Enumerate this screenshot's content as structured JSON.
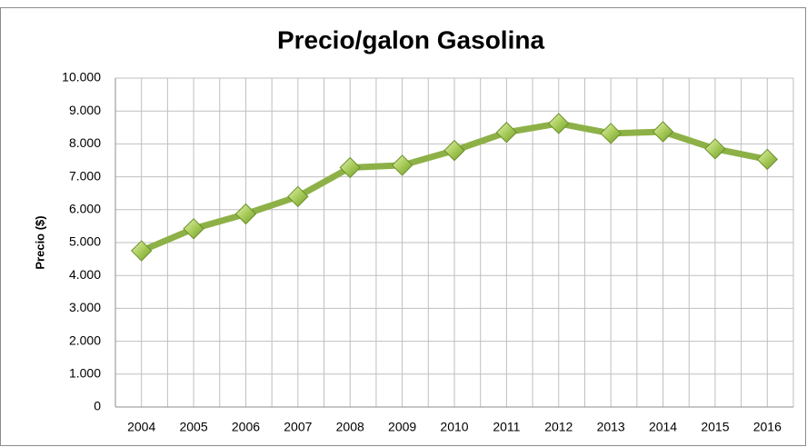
{
  "chart_data": {
    "type": "line",
    "title": "Precio/galon Gasolina",
    "y_label": "Precio ($)",
    "categories": [
      "2004",
      "2005",
      "2006",
      "2007",
      "2008",
      "2009",
      "2010",
      "2011",
      "2012",
      "2013",
      "2014",
      "2015",
      "2016"
    ],
    "values": [
      4750,
      5420,
      5870,
      6400,
      7280,
      7350,
      7800,
      8350,
      8620,
      8320,
      8370,
      7850,
      7530
    ],
    "color": "#8db147",
    "ylim": [
      0,
      10000
    ],
    "yticks": [
      0,
      {
        "value": 1000,
        "label": "1.000"
      },
      {
        "value": 2000,
        "label": "2.000"
      },
      {
        "value": 3000,
        "label": "3.000"
      },
      {
        "value": 4000,
        "label": "4.000"
      },
      {
        "value": 5000,
        "label": "5.000"
      },
      {
        "value": 6000,
        "label": "6.000"
      },
      {
        "value": 7000,
        "label": "7.000"
      },
      {
        "value": 8000,
        "label": "8.000"
      },
      {
        "value": 9000,
        "label": "9.000"
      },
      {
        "value": 10000,
        "label": "10.000"
      }
    ],
    "grid": true
  }
}
